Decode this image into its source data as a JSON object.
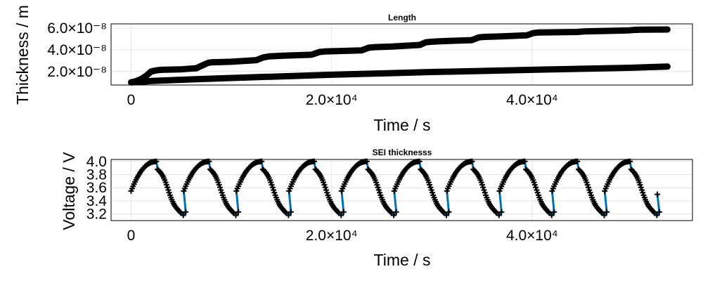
{
  "chart_data": [
    {
      "type": "line",
      "title": "Length",
      "xlabel": "Time / s",
      "ylabel": "Thickness / m",
      "xlim": [
        -2000,
        56000
      ],
      "ylim": [
        7.5e-09,
        6.4e-08
      ],
      "xticks": [
        0,
        20000,
        40000
      ],
      "xtick_labels": [
        "0",
        "2.0×10⁴",
        "4.0×10⁴"
      ],
      "yticks": [
        2e-08,
        4e-08,
        6e-08
      ],
      "ytick_labels": [
        "2.0×10⁻⁸",
        "4.0×10⁻⁸",
        "6.0×10⁻⁸"
      ],
      "grid": true,
      "series": [
        {
          "color": "#000000",
          "x": [
            0,
            500,
            1000,
            1500,
            2000,
            2500,
            3000,
            5000,
            6500,
            7200,
            7700,
            8000,
            10000,
            12500,
            13200,
            13800,
            15000,
            18000,
            18800,
            19300,
            23000,
            23700,
            24300,
            26000,
            28800,
            29400,
            30000,
            31000,
            34000,
            34700,
            35300,
            37000,
            39500,
            40100,
            40600,
            42000,
            44500,
            45200,
            45800,
            47500,
            49700,
            50300,
            50800,
            53500
          ],
          "y": [
            1e-08,
            1.1e-08,
            1.3e-08,
            1.6e-08,
            2e-08,
            2.1e-08,
            2.15e-08,
            2.2e-08,
            2.3e-08,
            2.6e-08,
            2.8e-08,
            2.85e-08,
            2.9e-08,
            3.05e-08,
            3.3e-08,
            3.4e-08,
            3.45e-08,
            3.55e-08,
            3.8e-08,
            3.85e-08,
            3.95e-08,
            4.2e-08,
            4.25e-08,
            4.3e-08,
            4.45e-08,
            4.7e-08,
            4.75e-08,
            4.8e-08,
            4.9e-08,
            5.15e-08,
            5.2e-08,
            5.25e-08,
            5.35e-08,
            5.55e-08,
            5.6e-08,
            5.62e-08,
            5.65e-08,
            5.7e-08,
            5.72e-08,
            5.75e-08,
            5.8e-08,
            5.85e-08,
            5.87e-08,
            5.88e-08
          ]
        },
        {
          "color": "#000000",
          "x": [
            0,
            1000,
            2000,
            4000,
            6000,
            10000,
            15000,
            20000,
            25000,
            30000,
            35000,
            40000,
            45000,
            50000,
            53500
          ],
          "y": [
            1e-08,
            1.05e-08,
            1.12e-08,
            1.2e-08,
            1.27e-08,
            1.4e-08,
            1.55e-08,
            1.7e-08,
            1.82e-08,
            1.95e-08,
            2.05e-08,
            2.15e-08,
            2.25e-08,
            2.35e-08,
            2.45e-08
          ]
        }
      ]
    },
    {
      "type": "line",
      "title": "SEI thicknesss",
      "xlabel": "Time / s",
      "ylabel": "Voltage / V",
      "xlim": [
        -2000,
        56000
      ],
      "ylim": [
        3.1,
        4.03
      ],
      "xticks": [
        0,
        20000,
        40000
      ],
      "xtick_labels": [
        "0",
        "2.0×10⁴",
        "4.0×10⁴"
      ],
      "yticks": [
        3.2,
        3.4,
        3.6,
        3.8,
        4.0
      ],
      "ytick_labels": [
        "3.2",
        "3.4",
        "3.6",
        "3.8",
        "4.0"
      ],
      "grid": true,
      "line_color": "#0072b2",
      "marker_color": "#000000",
      "cycle": {
        "start": 0,
        "period": 5250,
        "count": 10,
        "end": 53500,
        "charge_start_v": 3.55,
        "charge_end_v": 4.0,
        "discharge_start_v": 3.88,
        "discharge_end_v": 3.22,
        "charge_fraction": 0.48,
        "discharge_fraction": 0.44
      }
    }
  ]
}
